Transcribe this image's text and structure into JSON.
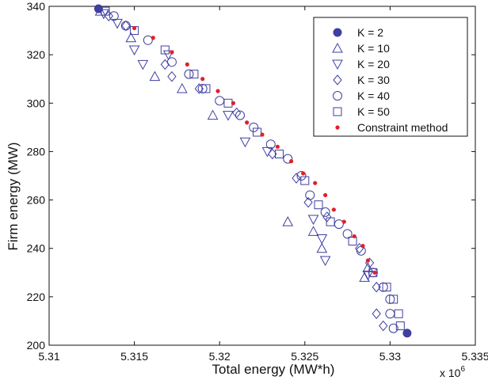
{
  "chart_data": {
    "type": "scatter",
    "xlabel": "Total energy (MW*h)",
    "ylabel": "Firm energy (MW)",
    "x_multiplier_label": "x 10",
    "x_multiplier_exponent": "6",
    "xlim": [
      5.31,
      5.335
    ],
    "ylim": [
      200,
      340
    ],
    "xticks": [
      "5.31",
      "5.315",
      "5.32",
      "5.325",
      "5.33",
      "5.335"
    ],
    "yticks": [
      "200",
      "220",
      "240",
      "260",
      "280",
      "300",
      "320",
      "340"
    ],
    "grid": false,
    "legend_position": "top-right",
    "colors": {
      "series": "#3f3fa0",
      "constraint": "#e0202a",
      "axis": "#111111"
    },
    "series": [
      {
        "name": "K = 2",
        "marker": "filled-circle",
        "points": [
          [
            5.3129,
            339
          ],
          [
            5.331,
            205
          ]
        ]
      },
      {
        "name": "K = 10",
        "marker": "triangle-up",
        "points": [
          [
            5.313,
            338
          ],
          [
            5.3148,
            327
          ],
          [
            5.3162,
            311
          ],
          [
            5.3178,
            306
          ],
          [
            5.3196,
            295
          ],
          [
            5.324,
            251
          ],
          [
            5.3255,
            247
          ],
          [
            5.326,
            240
          ],
          [
            5.3285,
            228
          ],
          [
            5.3287,
            232
          ]
        ]
      },
      {
        "name": "K = 20",
        "marker": "triangle-down",
        "points": [
          [
            5.3132,
            337
          ],
          [
            5.314,
            333
          ],
          [
            5.315,
            322
          ],
          [
            5.3155,
            316
          ],
          [
            5.317,
            320
          ],
          [
            5.3205,
            295
          ],
          [
            5.3215,
            284
          ],
          [
            5.3228,
            280
          ],
          [
            5.3255,
            252
          ],
          [
            5.326,
            244
          ],
          [
            5.3262,
            235
          ],
          [
            5.3287,
            229
          ]
        ]
      },
      {
        "name": "K = 30",
        "marker": "diamond",
        "points": [
          [
            5.3135,
            336
          ],
          [
            5.3145,
            332
          ],
          [
            5.3168,
            316
          ],
          [
            5.3172,
            311
          ],
          [
            5.3188,
            306
          ],
          [
            5.321,
            296
          ],
          [
            5.3231,
            279
          ],
          [
            5.3245,
            269
          ],
          [
            5.3252,
            259
          ],
          [
            5.3263,
            253
          ],
          [
            5.3282,
            240
          ],
          [
            5.3288,
            234
          ],
          [
            5.3292,
            224
          ],
          [
            5.3292,
            213
          ],
          [
            5.3296,
            208
          ]
        ]
      },
      {
        "name": "K = 40",
        "marker": "open-circle",
        "points": [
          [
            5.3138,
            336
          ],
          [
            5.3145,
            332
          ],
          [
            5.3158,
            326
          ],
          [
            5.3172,
            317
          ],
          [
            5.3182,
            312
          ],
          [
            5.319,
            306
          ],
          [
            5.32,
            301
          ],
          [
            5.3212,
            295
          ],
          [
            5.322,
            290
          ],
          [
            5.323,
            283
          ],
          [
            5.324,
            277
          ],
          [
            5.3248,
            270
          ],
          [
            5.3253,
            262
          ],
          [
            5.3262,
            255
          ],
          [
            5.327,
            250
          ],
          [
            5.3275,
            246
          ],
          [
            5.3283,
            239
          ],
          [
            5.329,
            230
          ],
          [
            5.3296,
            224
          ],
          [
            5.33,
            219
          ],
          [
            5.33,
            213
          ],
          [
            5.3302,
            207
          ]
        ]
      },
      {
        "name": "K = 50",
        "marker": "open-square",
        "points": [
          [
            5.3133,
            338
          ],
          [
            5.315,
            330
          ],
          [
            5.3168,
            322
          ],
          [
            5.3185,
            312
          ],
          [
            5.3192,
            306
          ],
          [
            5.3205,
            300
          ],
          [
            5.3222,
            288
          ],
          [
            5.3235,
            279
          ],
          [
            5.325,
            268
          ],
          [
            5.3258,
            258
          ],
          [
            5.3265,
            251
          ],
          [
            5.3278,
            243
          ],
          [
            5.329,
            230
          ],
          [
            5.3298,
            224
          ],
          [
            5.3302,
            219
          ],
          [
            5.3305,
            213
          ],
          [
            5.3306,
            208
          ]
        ]
      },
      {
        "name": "Constraint method",
        "marker": "small-dot",
        "points": [
          [
            5.315,
            331
          ],
          [
            5.3161,
            327
          ],
          [
            5.3172,
            321
          ],
          [
            5.3181,
            316
          ],
          [
            5.319,
            310
          ],
          [
            5.3199,
            305
          ],
          [
            5.3208,
            300
          ],
          [
            5.3216,
            292
          ],
          [
            5.3225,
            287
          ],
          [
            5.3234,
            282
          ],
          [
            5.3242,
            276
          ],
          [
            5.3249,
            271
          ],
          [
            5.3256,
            267
          ],
          [
            5.3262,
            262
          ],
          [
            5.3267,
            256
          ],
          [
            5.3273,
            251
          ],
          [
            5.3279,
            245
          ],
          [
            5.3284,
            241
          ],
          [
            5.3287,
            235
          ],
          [
            5.3291,
            230
          ]
        ]
      }
    ]
  }
}
